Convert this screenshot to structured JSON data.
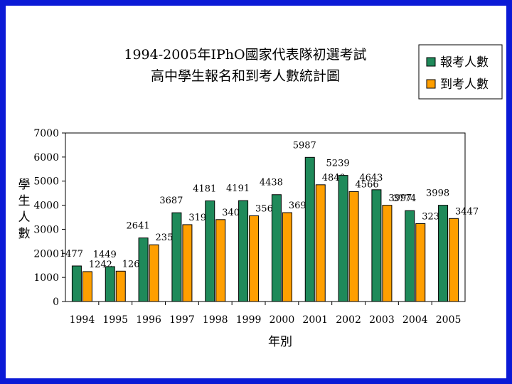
{
  "colors": {
    "frame": "#0b1ad6",
    "series_registered": "#1f8a5a",
    "series_attended": "#ff9f00"
  },
  "chart_data": {
    "type": "bar",
    "title_line1": "1994-2005年IPhO國家代表隊初選考試",
    "title_line2": "高中學生報名和到考人數統計圖",
    "xlabel": "年別",
    "ylabel": "學生人數",
    "ylim": [
      0,
      7000
    ],
    "yticks": [
      0,
      1000,
      2000,
      3000,
      4000,
      5000,
      6000,
      7000
    ],
    "legend_position": "top-right",
    "categories": [
      "1994",
      "1995",
      "1996",
      "1997",
      "1998",
      "1999",
      "2000",
      "2001",
      "2002",
      "2003",
      "2004",
      "2005"
    ],
    "series": [
      {
        "name": "報考人數",
        "values": [
          1477,
          1449,
          2641,
          3687,
          4181,
          4191,
          4438,
          5987,
          5239,
          4643,
          3774,
          3998
        ]
      },
      {
        "name": "到考人數",
        "values": [
          1242,
          1261,
          2356,
          3192,
          3402,
          3560,
          3691,
          4849,
          4566,
          3997,
          3236,
          3447
        ]
      }
    ]
  }
}
